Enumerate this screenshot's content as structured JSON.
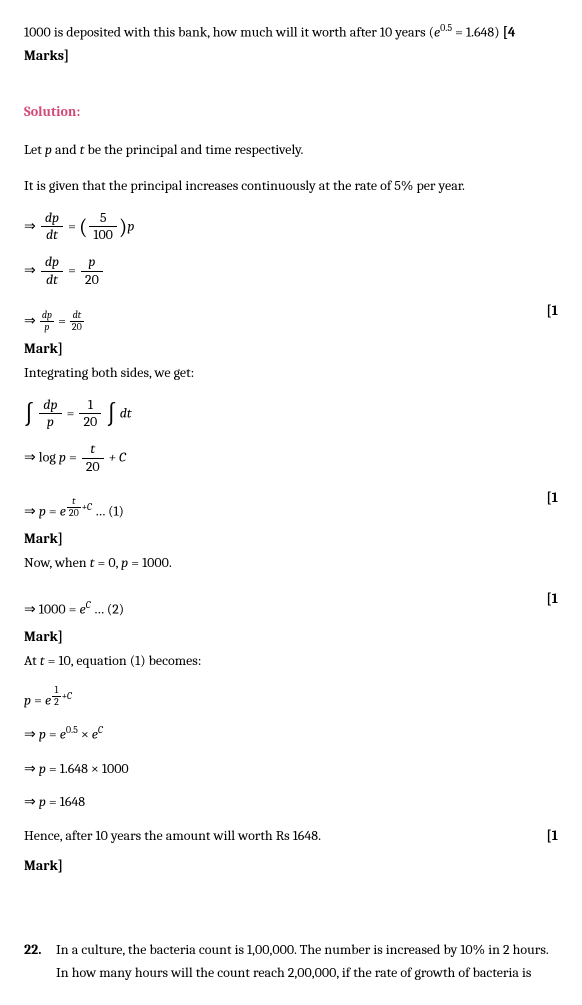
{
  "question_intro": "1000 is deposited with this bank, how much will it worth after 10 years (",
  "question_exp_base": "e",
  "question_exp_sup": "0.5",
  "question_exp_val": " = 1.648)  ",
  "question_marks": "[4 Marks]",
  "solution_label": "Solution:",
  "line1_a": "Let ",
  "line1_p": "p",
  "line1_b": " and ",
  "line1_t": "t",
  "line1_c": " be the principal and time respectively.",
  "line2": "It is given that the principal increases continuously at the rate of 5% per year.",
  "eq1_arrow": "⇒ ",
  "eq1_num": "dp",
  "eq1_den": "dt",
  "eq1_eq": " = ",
  "eq1_lp": "(",
  "eq1_inner_num": "5",
  "eq1_inner_den": "100",
  "eq1_rp": ")",
  "eq1_p": "p",
  "eq2_arrow": "⇒ ",
  "eq2_num": "dp",
  "eq2_den": "dt",
  "eq2_eq": " = ",
  "eq2_rnum": "p",
  "eq2_rden": "20",
  "eq3_arrow": "⇒ ",
  "eq3_lnum": "dp",
  "eq3_lden": "p",
  "eq3_eq": " = ",
  "eq3_rnum": "dt",
  "eq3_rden": "20",
  "mark1_right": "[1",
  "mark1_word": "Mark]",
  "line_integrating": "Integrating both sides, we get:",
  "eq4_int1": "∫",
  "eq4_f1num": "dp",
  "eq4_f1den": "p",
  "eq4_eq": " = ",
  "eq4_f2num": "1",
  "eq4_f2den": "20",
  "eq4_int2": "∫",
  "eq4_dt": " dt",
  "eq5_arrow": "⇒ log ",
  "eq5_p": "p",
  "eq5_eq": " = ",
  "eq5_num": "t",
  "eq5_den": "20",
  "eq5_c": " + C",
  "eq6_arrow": "⇒ ",
  "eq6_p": "p",
  "eq6_eq": " = ",
  "eq6_e": "e",
  "eq6_sup_num": "t",
  "eq6_sup_den": "20",
  "eq6_sup_c": "+C",
  "eq6_dots": " … (1)",
  "mark2_right": "[1",
  "mark2_word": "Mark]",
  "line_now_a": "Now, when ",
  "line_now_t": "t",
  "line_now_b": " = 0, ",
  "line_now_p": "p",
  "line_now_c": " = 1000.",
  "eq7_arrow": "⇒ 1000 = ",
  "eq7_e": "e",
  "eq7_sup": "C",
  "eq7_dots": " … (2)",
  "mark3_right": "[1",
  "mark3_word": "Mark]",
  "line_at_a": "At ",
  "line_at_t": "t",
  "line_at_b": " = 10, equation (1) becomes:",
  "eq8_p": "p",
  "eq8_eq": " = ",
  "eq8_e": "e",
  "eq8_sup_num": "1",
  "eq8_sup_den": "2",
  "eq8_sup_c": "+C",
  "eq9_arrow": "⇒ ",
  "eq9_p": "p",
  "eq9_eq": " = ",
  "eq9_e1": "e",
  "eq9_sup1": "0.5",
  "eq9_times": " × ",
  "eq9_e2": "e",
  "eq9_sup2": "C",
  "eq10_arrow": "⇒ ",
  "eq10_p": "p",
  "eq10_val": " = 1.648 × 1000",
  "eq11_arrow": "⇒ ",
  "eq11_p": "p",
  "eq11_val": " = 1648",
  "conclusion": "Hence, after 10 years the amount will worth Rs 1648.",
  "mark4_right": "[1",
  "mark4_word": "Mark]",
  "q22_num": "22.",
  "q22_text": "In a culture, the bacteria count is 1,00,000. The number is increased by 10% in 2 hours. In how many hours will the count reach 2,00,000, if the rate of growth of bacteria is"
}
